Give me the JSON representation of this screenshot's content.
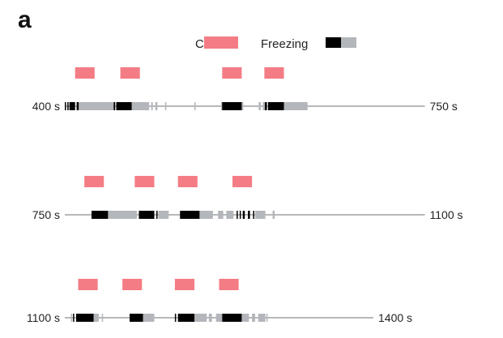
{
  "figure": {
    "panel_label": "a",
    "legend": {
      "cs_label": "CS+",
      "freezing_label": "Freezing"
    },
    "colors": {
      "cs": "#f47c85",
      "freezing_dark": "#000000",
      "freezing_light": "#b3b6ba",
      "baseline": "#8a8d91"
    },
    "rows": [
      {
        "start_label": "400 s",
        "end_label": "750 s",
        "start": 400,
        "end": 750,
        "cs": [
          [
            410,
            429
          ],
          [
            454,
            473
          ],
          [
            553,
            572
          ],
          [
            594,
            613
          ]
        ],
        "black": [
          [
            400,
            401
          ],
          [
            402.5,
            403.5
          ],
          [
            404.5,
            410
          ],
          [
            411.5,
            413.5
          ],
          [
            447.5,
            449
          ],
          [
            450,
            465
          ],
          [
            553,
            572
          ],
          [
            594.5,
            596.5
          ],
          [
            597.5,
            613
          ]
        ],
        "gray": [
          [
            413.5,
            447.5
          ],
          [
            465,
            482
          ],
          [
            484,
            485.5
          ],
          [
            488,
            490
          ],
          [
            497.5,
            498.5
          ],
          [
            526,
            527
          ],
          [
            552,
            553
          ],
          [
            572,
            573.5
          ],
          [
            588.5,
            590.5
          ],
          [
            592.5,
            594.5
          ],
          [
            613,
            636
          ]
        ]
      },
      {
        "start_label": "750 s",
        "end_label": "1100 s",
        "start": 750,
        "end": 1100,
        "cs": [
          [
            769,
            788
          ],
          [
            818,
            837
          ],
          [
            860,
            879
          ],
          [
            913,
            932
          ]
        ],
        "black": [
          [
            776,
            792
          ],
          [
            822,
            837
          ],
          [
            839,
            840
          ],
          [
            862,
            881
          ],
          [
            917,
            918
          ],
          [
            920,
            921
          ],
          [
            923,
            925
          ],
          [
            928,
            930
          ],
          [
            933,
            934
          ]
        ],
        "gray": [
          [
            792,
            820
          ],
          [
            841,
            851
          ],
          [
            881,
            894
          ],
          [
            899,
            904
          ],
          [
            907,
            914
          ],
          [
            935,
            945
          ],
          [
            952,
            954
          ]
        ]
      },
      {
        "start_label": "1100 s",
        "end_label": "1400 s",
        "start": 1100,
        "end": 1400,
        "cs": [
          [
            1113,
            1132
          ],
          [
            1156,
            1175
          ],
          [
            1207,
            1226
          ],
          [
            1250,
            1269
          ]
        ],
        "black": [
          [
            1108,
            1109
          ],
          [
            1111,
            1128
          ],
          [
            1163,
            1176
          ],
          [
            1207,
            1208
          ],
          [
            1210,
            1226
          ],
          [
            1253,
            1272
          ]
        ],
        "gray": [
          [
            1106,
            1107
          ],
          [
            1128,
            1133
          ],
          [
            1136,
            1137
          ],
          [
            1176,
            1187
          ],
          [
            1226,
            1238
          ],
          [
            1240,
            1243
          ],
          [
            1247,
            1253
          ],
          [
            1272,
            1279
          ],
          [
            1282,
            1285
          ],
          [
            1288,
            1295
          ],
          [
            1296,
            1297
          ]
        ]
      }
    ]
  }
}
